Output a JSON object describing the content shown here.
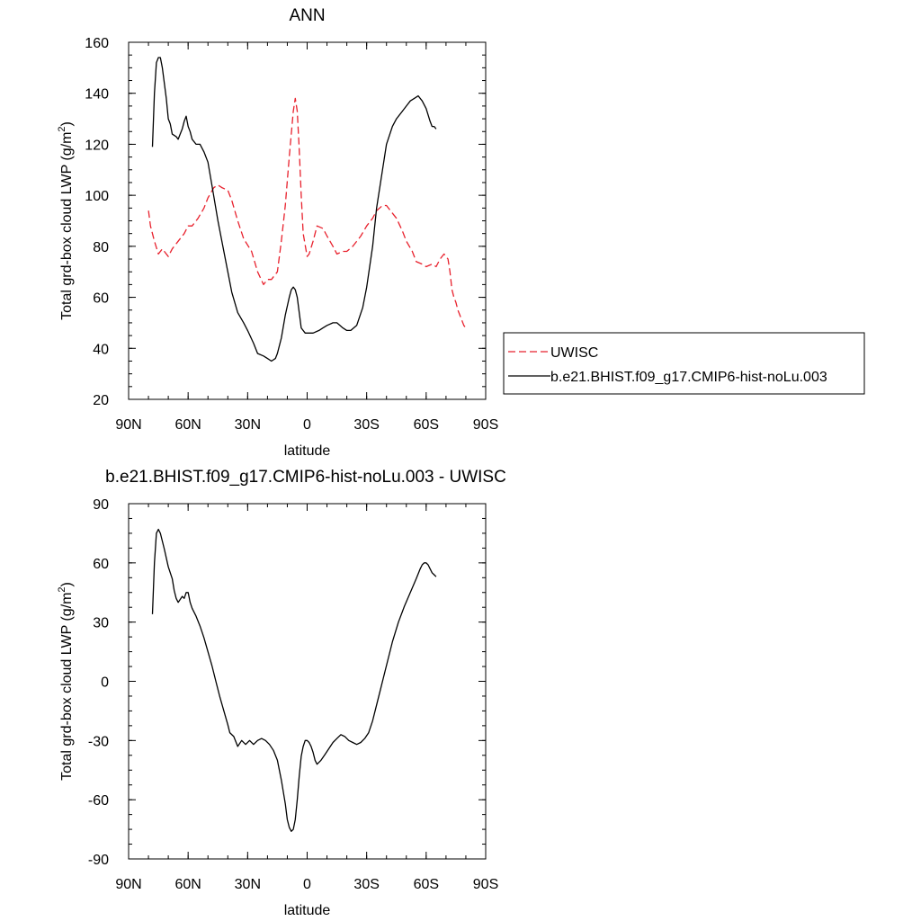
{
  "chart_data": [
    {
      "type": "line",
      "title": "ANN",
      "xlabel": "latitude",
      "ylabel": "Total grd-box cloud LWP (g/m",
      "ylabel_sup": "2",
      "ylabel_close": ")",
      "xlim": [
        90,
        -90
      ],
      "ylim": [
        20,
        160
      ],
      "x_ticks": [
        {
          "value": 90,
          "label": "90N"
        },
        {
          "value": 60,
          "label": "60N"
        },
        {
          "value": 30,
          "label": "30N"
        },
        {
          "value": 0,
          "label": "0"
        },
        {
          "value": -30,
          "label": "30S"
        },
        {
          "value": -60,
          "label": "60S"
        },
        {
          "value": -90,
          "label": "90S"
        }
      ],
      "y_ticks": [
        20,
        40,
        60,
        80,
        100,
        120,
        140,
        160
      ],
      "legend": "outside-right",
      "series": [
        {
          "name": "UWISC",
          "color": "#e8212d",
          "dash": "dashed",
          "x": [
            80,
            79,
            78,
            77,
            75,
            73,
            70,
            68,
            65,
            62,
            60,
            58,
            55,
            52,
            50,
            47,
            45,
            43,
            40,
            38,
            35,
            32,
            28,
            25,
            22,
            20,
            18,
            15,
            13,
            11,
            9,
            7,
            6,
            5,
            4,
            3,
            2,
            0,
            -1,
            -3,
            -5,
            -8,
            -10,
            -13,
            -15,
            -18,
            -20,
            -23,
            -27,
            -30,
            -33,
            -35,
            -38,
            -40,
            -42,
            -45,
            -48,
            -50,
            -53,
            -55,
            -58,
            -60,
            -63,
            -65,
            -67,
            -69,
            -71,
            -72,
            -73,
            -74,
            -75,
            -76,
            -77,
            -78,
            -79,
            -80
          ],
          "y": [
            94,
            88,
            85,
            82,
            77,
            79,
            76,
            79,
            82,
            85,
            88,
            88,
            91,
            95,
            99,
            103,
            104,
            103,
            102,
            98,
            90,
            83,
            78,
            70,
            65,
            67,
            67,
            70,
            82,
            96,
            115,
            133,
            138,
            133,
            118,
            100,
            85,
            76,
            77,
            82,
            88,
            87,
            84,
            80,
            77,
            78,
            78,
            80,
            84,
            88,
            91,
            94,
            96,
            96,
            94,
            91,
            86,
            82,
            78,
            74,
            73,
            72,
            73,
            72,
            75,
            77,
            75,
            70,
            63,
            60,
            58,
            55,
            53,
            51,
            49,
            48
          ]
        },
        {
          "name": "b.e21.BHIST.f09_g17.CMIP6-hist-noLu.003",
          "color": "#000000",
          "dash": "solid",
          "x": [
            78,
            77,
            76,
            75,
            74,
            73,
            71,
            70,
            69,
            68,
            66,
            65,
            63,
            62,
            61,
            60,
            59,
            58,
            56,
            54,
            52,
            50,
            48,
            45,
            43,
            40,
            38,
            35,
            32,
            30,
            27,
            25,
            22,
            20,
            18,
            16,
            15,
            13,
            11,
            9,
            8,
            7,
            6,
            5,
            4,
            3,
            1,
            0,
            -3,
            -6,
            -8,
            -10,
            -13,
            -15,
            -18,
            -20,
            -22,
            -25,
            -28,
            -30,
            -33,
            -35,
            -38,
            -40,
            -43,
            -45,
            -48,
            -50,
            -52,
            -54,
            -56,
            -58,
            -60,
            -62,
            -63,
            -64,
            -65
          ],
          "y": [
            119,
            140,
            152,
            154,
            154,
            150,
            138,
            130,
            128,
            124,
            123,
            122,
            126,
            129,
            131,
            127,
            125,
            122,
            120,
            120,
            117,
            113,
            104,
            90,
            82,
            70,
            62,
            54,
            50,
            47,
            42,
            38,
            37,
            36,
            35,
            36,
            38,
            44,
            53,
            60,
            63,
            64,
            63,
            60,
            54,
            48,
            46,
            46,
            46,
            47,
            48,
            49,
            50,
            50,
            48,
            47,
            47,
            49,
            56,
            64,
            80,
            95,
            110,
            120,
            127,
            130,
            133,
            135,
            137,
            138,
            139,
            137,
            134,
            129,
            127,
            127,
            126
          ]
        }
      ]
    },
    {
      "type": "line",
      "title": "b.e21.BHIST.f09_g17.CMIP6-hist-noLu.003 - UWISC",
      "xlabel": "latitude",
      "ylabel": "Total grd-box cloud LWP (g/m",
      "ylabel_sup": "2",
      "ylabel_close": ")",
      "xlim": [
        90,
        -90
      ],
      "ylim": [
        -90,
        90
      ],
      "x_ticks": [
        {
          "value": 90,
          "label": "90N"
        },
        {
          "value": 60,
          "label": "60N"
        },
        {
          "value": 30,
          "label": "30N"
        },
        {
          "value": 0,
          "label": "0"
        },
        {
          "value": -30,
          "label": "30S"
        },
        {
          "value": -60,
          "label": "60S"
        },
        {
          "value": -90,
          "label": "90S"
        }
      ],
      "y_ticks": [
        -90,
        -60,
        -30,
        0,
        30,
        60,
        90
      ],
      "series": [
        {
          "color": "#000000",
          "dash": "solid",
          "x": [
            78,
            77,
            76,
            75,
            74,
            72,
            70,
            68,
            67,
            66,
            65,
            63,
            62,
            61,
            60,
            59,
            58,
            56,
            54,
            52,
            50,
            48,
            46,
            44,
            42,
            40,
            39,
            37,
            35,
            33,
            31,
            29,
            27,
            25,
            23,
            21,
            19,
            17,
            15,
            13,
            11,
            10,
            9,
            8,
            7,
            6,
            5,
            4,
            3,
            2,
            1,
            0,
            -1,
            -2,
            -3,
            -4,
            -5,
            -7,
            -9,
            -11,
            -13,
            -15,
            -17,
            -19,
            -21,
            -23,
            -25,
            -27,
            -29,
            -31,
            -33,
            -35,
            -37,
            -40,
            -43,
            -46,
            -49,
            -52,
            -55,
            -57,
            -58,
            -59,
            -60,
            -61,
            -62,
            -63,
            -64,
            -65
          ],
          "y": [
            34,
            60,
            75,
            77,
            75,
            67,
            58,
            52,
            46,
            42,
            40,
            43,
            42,
            45,
            45,
            40,
            37,
            33,
            28,
            22,
            15,
            8,
            0,
            -8,
            -15,
            -22,
            -26,
            -28,
            -33,
            -30,
            -32,
            -30,
            -32,
            -30,
            -29,
            -30,
            -32,
            -35,
            -40,
            -50,
            -62,
            -70,
            -74,
            -76,
            -75,
            -70,
            -60,
            -48,
            -38,
            -33,
            -30,
            -30,
            -31,
            -33,
            -36,
            -40,
            -42,
            -40,
            -37,
            -34,
            -31,
            -29,
            -27,
            -28,
            -30,
            -31,
            -32,
            -31,
            -29,
            -26,
            -20,
            -12,
            -4,
            8,
            20,
            30,
            38,
            45,
            52,
            57,
            59,
            60,
            60,
            59,
            57,
            55,
            54,
            53
          ]
        }
      ]
    }
  ]
}
